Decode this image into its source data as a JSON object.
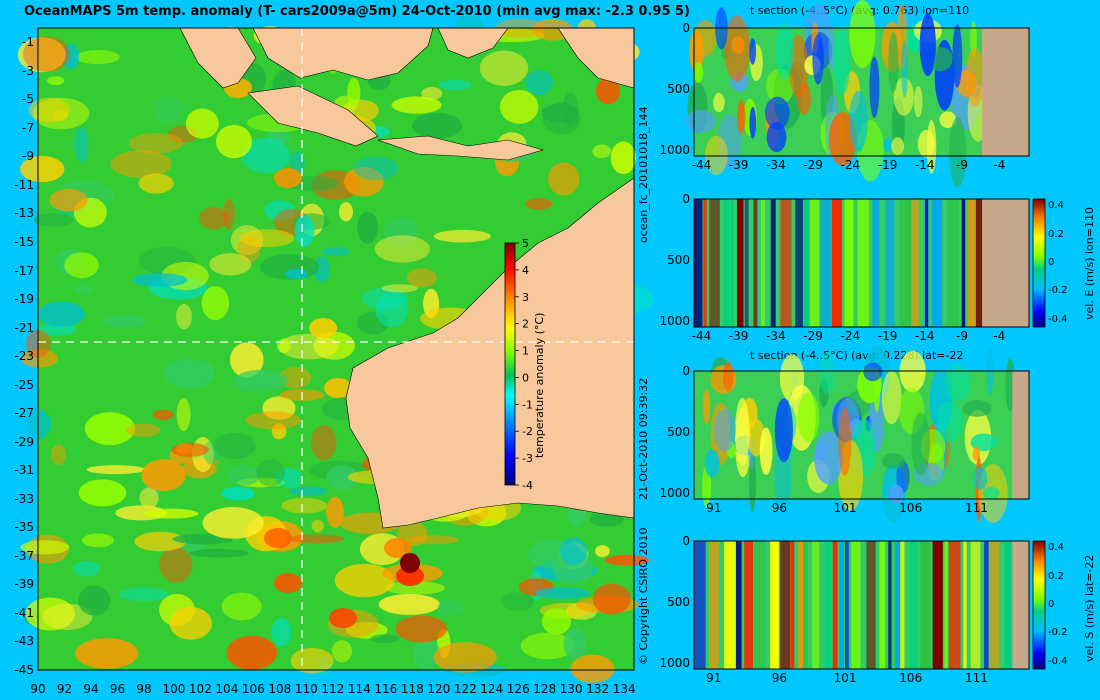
{
  "main_title": "OceanMAPS 5m temp. anomaly (T- cars2009a@5m) 24-Oct-2010 (min avg max: -2.3 0.95 5)",
  "side_labels": {
    "run_id": "ocean_fc_20101018_144",
    "run_time": "21-Oct-2010 09:39:32",
    "copyright": "© Copyright CSIRO 2010"
  },
  "colors": {
    "background": "#00c8ff",
    "land": "#f7c89b",
    "section_land": "#c8a88a",
    "contour": "#3fe0ff",
    "colormap": [
      "#00007f",
      "#0000ff",
      "#007fff",
      "#00ffff",
      "#00c060",
      "#7fff00",
      "#ffff00",
      "#ff7f00",
      "#ff0000",
      "#7f0000"
    ]
  },
  "chart_data": [
    {
      "type": "heatmap",
      "title": "OceanMAPS 5m temp. anomaly (T- cars2009a@5m) 24-Oct-2010 (min avg max: -2.3 0.95 5)",
      "xticks": [
        "90",
        "92",
        "94",
        "96",
        "98",
        "100",
        "102",
        "104",
        "106",
        "108",
        "110",
        "112",
        "114",
        "116",
        "118",
        "120",
        "122",
        "124",
        "126",
        "128",
        "130",
        "132",
        "134"
      ],
      "yticks": [
        "-1",
        "-3",
        "-5",
        "-7",
        "-9",
        "-11",
        "-13",
        "-15",
        "-17",
        "-19",
        "-21",
        "-23",
        "-25",
        "-27",
        "-29",
        "-31",
        "-33",
        "-35",
        "-37",
        "-39",
        "-41",
        "-43",
        "-45"
      ],
      "xlim": [
        90,
        135
      ],
      "ylim": [
        -45,
        0
      ],
      "section_lines": {
        "lon": 110,
        "lat": -22
      },
      "stats": {
        "min": -2.3,
        "avg": 0.95,
        "max": 5
      },
      "colorbar": {
        "label": "temperature anomaly (°C)",
        "ticks": [
          "5",
          "4",
          "3",
          "2",
          "1",
          "0",
          "-1",
          "-2",
          "-3",
          "-4"
        ],
        "range": [
          -4,
          5
        ]
      }
    },
    {
      "type": "heatmap",
      "title": "t section (-4..5°C) (avg: 0.763) lon=110",
      "xticks": [
        "-44",
        "-39",
        "-34",
        "-29",
        "-24",
        "-19",
        "-14",
        "-9",
        "-4"
      ],
      "yticks": [
        "0",
        "500",
        "1000"
      ],
      "xlim": [
        -45,
        0
      ],
      "ylim": [
        1050,
        0
      ],
      "avg": 0.763
    },
    {
      "type": "heatmap",
      "title": "",
      "xticks": [
        "-44",
        "-39",
        "-34",
        "-29",
        "-24",
        "-19",
        "-14",
        "-9",
        "-4"
      ],
      "yticks": [
        "0",
        "500",
        "1000"
      ],
      "xlim": [
        -45,
        0
      ],
      "ylim": [
        1050,
        0
      ],
      "colorbar": {
        "label": "vel. E (m/s) lon=110",
        "ticks": [
          "0.4",
          "0.2",
          "0",
          "-0.2",
          "-0.4"
        ],
        "range": [
          -0.45,
          0.45
        ]
      }
    },
    {
      "type": "heatmap",
      "title": "t section (-4..5°C) (avg: 0.228) lat=-22",
      "xticks": [
        "91",
        "96",
        "101",
        "106",
        "111"
      ],
      "yticks": [
        "0",
        "500",
        "1000"
      ],
      "xlim": [
        89.5,
        115
      ],
      "ylim": [
        1050,
        0
      ],
      "avg": 0.228
    },
    {
      "type": "heatmap",
      "title": "",
      "xticks": [
        "91",
        "96",
        "101",
        "106",
        "111"
      ],
      "yticks": [
        "0",
        "500",
        "1000"
      ],
      "xlim": [
        89.5,
        115
      ],
      "ylim": [
        1050,
        0
      ],
      "colorbar": {
        "label": "vel. S (m/s) lat=-22",
        "ticks": [
          "0.4",
          "0.2",
          "0",
          "-0.2",
          "-0.4"
        ],
        "range": [
          -0.45,
          0.45
        ]
      }
    }
  ]
}
